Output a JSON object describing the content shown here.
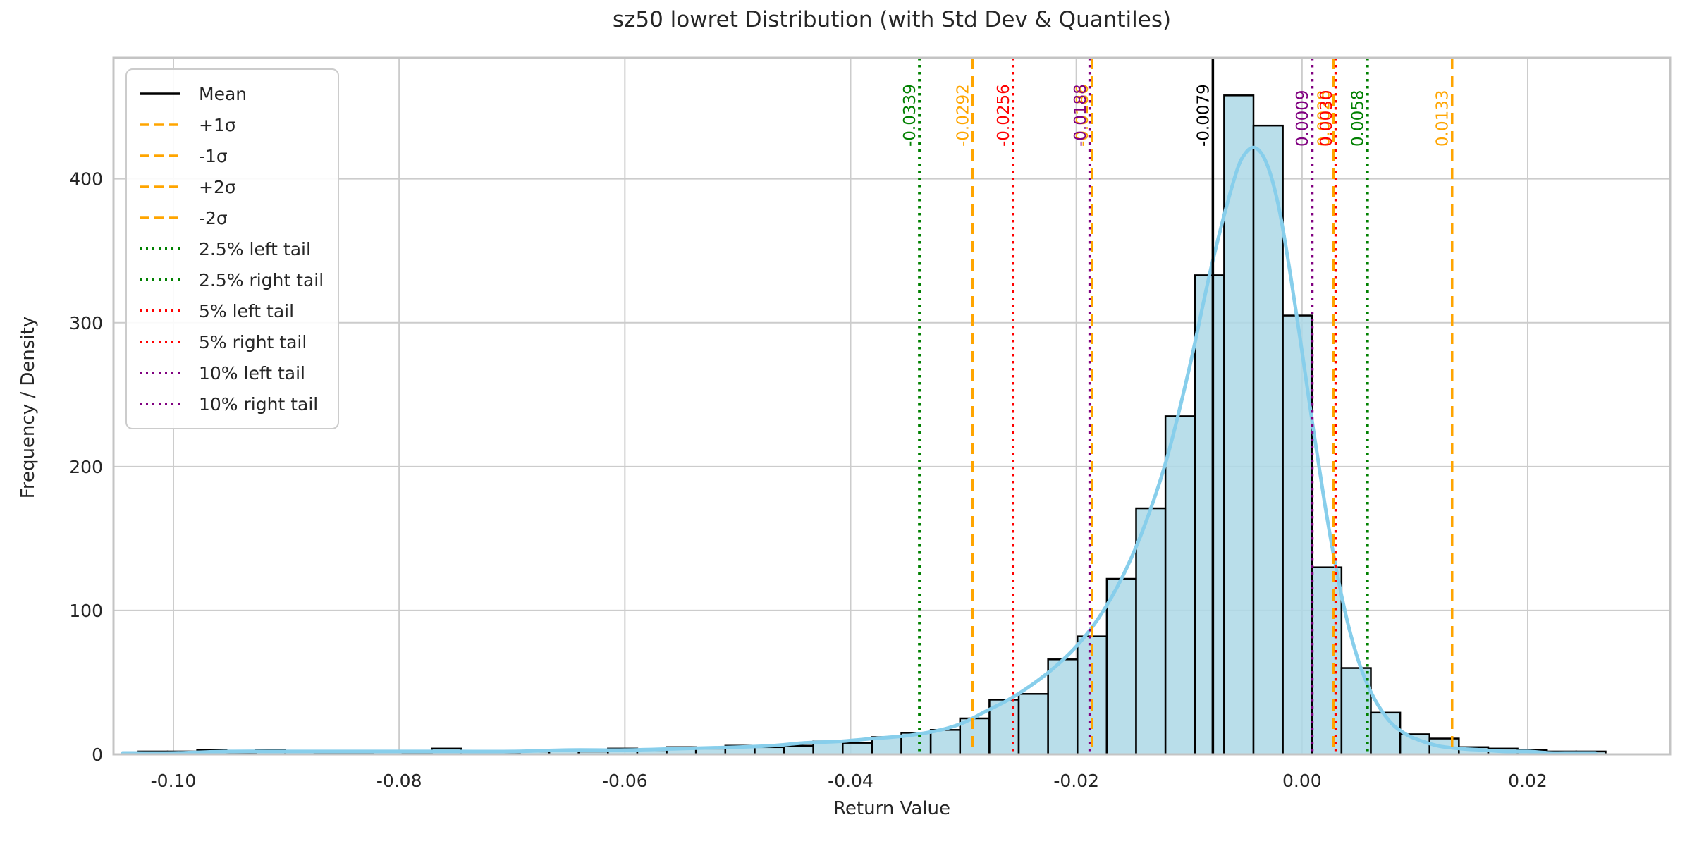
{
  "page": {
    "background": "#ffffff"
  },
  "chart_data": {
    "type": "bar",
    "subtype": "histogram-with-kde",
    "title": "sz50 lowret Distribution (with Std Dev & Quantiles)",
    "xlabel": "Return Value",
    "ylabel": "Frequency / Density",
    "xlim": [
      -0.1053,
      0.0326
    ],
    "ylim": [
      0,
      484
    ],
    "grid": true,
    "grid_color": "#cccccc",
    "spine_color": "#c4c4c4",
    "tick_color": "#262626",
    "x_ticks": [
      {
        "value": -0.1,
        "label": "-0.10"
      },
      {
        "value": -0.08,
        "label": "-0.08"
      },
      {
        "value": -0.06,
        "label": "-0.06"
      },
      {
        "value": -0.04,
        "label": "-0.04"
      },
      {
        "value": -0.02,
        "label": "-0.02"
      },
      {
        "value": 0.0,
        "label": "0.00"
      },
      {
        "value": 0.02,
        "label": "0.02"
      }
    ],
    "y_ticks": [
      {
        "value": 0,
        "label": "0"
      },
      {
        "value": 100,
        "label": "100"
      },
      {
        "value": 200,
        "label": "200"
      },
      {
        "value": 300,
        "label": "300"
      },
      {
        "value": 400,
        "label": "400"
      }
    ],
    "histogram": {
      "fill_color": "#ADD8E6",
      "fill_opacity": 0.85,
      "edge_color": "#000000",
      "bin_start": -0.1031,
      "bin_width": 0.0026,
      "counts": [
        2,
        2,
        3,
        1,
        3,
        2,
        1,
        1,
        2,
        1,
        4,
        2,
        1,
        2,
        3,
        2,
        4,
        3,
        5,
        4,
        6,
        5,
        6,
        9,
        8,
        12,
        15,
        17,
        25,
        38,
        42,
        66,
        82,
        122,
        171,
        235,
        333,
        458,
        437,
        305,
        130,
        60,
        29,
        14,
        11,
        5,
        4,
        3,
        2,
        2
      ]
    },
    "kde": {
      "color": "#87CEEB",
      "line_width": 5,
      "points": [
        [
          -0.1045,
          1
        ],
        [
          -0.1,
          1
        ],
        [
          -0.095,
          2
        ],
        [
          -0.09,
          2
        ],
        [
          -0.085,
          2
        ],
        [
          -0.08,
          2
        ],
        [
          -0.075,
          2
        ],
        [
          -0.07,
          2
        ],
        [
          -0.065,
          3
        ],
        [
          -0.06,
          3
        ],
        [
          -0.055,
          4
        ],
        [
          -0.05,
          5
        ],
        [
          -0.047,
          6
        ],
        [
          -0.044,
          8
        ],
        [
          -0.041,
          9
        ],
        [
          -0.038,
          11
        ],
        [
          -0.035,
          13
        ],
        [
          -0.032,
          17
        ],
        [
          -0.03,
          22
        ],
        [
          -0.028,
          30
        ],
        [
          -0.026,
          38
        ],
        [
          -0.024,
          48
        ],
        [
          -0.022,
          60
        ],
        [
          -0.02,
          75
        ],
        [
          -0.018,
          95
        ],
        [
          -0.016,
          122
        ],
        [
          -0.014,
          158
        ],
        [
          -0.012,
          205
        ],
        [
          -0.01,
          268
        ],
        [
          -0.008,
          340
        ],
        [
          -0.006,
          400
        ],
        [
          -0.005,
          418
        ],
        [
          -0.004,
          421
        ],
        [
          -0.003,
          408
        ],
        [
          -0.002,
          378
        ],
        [
          -0.001,
          332
        ],
        [
          0.0,
          280
        ],
        [
          0.001,
          226
        ],
        [
          0.002,
          175
        ],
        [
          0.003,
          130
        ],
        [
          0.004,
          93
        ],
        [
          0.005,
          65
        ],
        [
          0.006,
          45
        ],
        [
          0.007,
          31
        ],
        [
          0.008,
          21
        ],
        [
          0.009,
          15
        ],
        [
          0.01,
          11
        ],
        [
          0.012,
          6
        ],
        [
          0.014,
          4
        ],
        [
          0.016,
          3
        ],
        [
          0.018,
          2
        ],
        [
          0.02,
          2
        ],
        [
          0.022,
          1
        ],
        [
          0.024,
          1
        ],
        [
          0.026,
          1
        ]
      ]
    },
    "stat_lines": [
      {
        "name": "mean-line",
        "label": "-0.0079",
        "x": -0.0079,
        "color": "#000000",
        "style": "solid"
      },
      {
        "name": "plus-1-sigma-line",
        "label": "0.0028",
        "x": 0.0028,
        "color": "#FFA500",
        "style": "dashed"
      },
      {
        "name": "minus-1-sigma-line",
        "label": "-0.0186",
        "x": -0.0186,
        "color": "#FFA500",
        "style": "dashed"
      },
      {
        "name": "plus-2-sigma-line",
        "label": "0.0133",
        "x": 0.0133,
        "color": "#FFA500",
        "style": "dashed"
      },
      {
        "name": "minus-2-sigma-line",
        "label": "-0.0292",
        "x": -0.0292,
        "color": "#FFA500",
        "style": "dashed"
      },
      {
        "name": "left-tail-2p5-line",
        "label": "-0.0339",
        "x": -0.0339,
        "color": "#008000",
        "style": "dotted"
      },
      {
        "name": "right-tail-2p5-line",
        "label": "0.0058",
        "x": 0.0058,
        "color": "#008000",
        "style": "dotted"
      },
      {
        "name": "left-tail-5-line",
        "label": "-0.0256",
        "x": -0.0256,
        "color": "#FF0000",
        "style": "dotted"
      },
      {
        "name": "right-tail-5-line",
        "label": "0.0030",
        "x": 0.003,
        "color": "#FF0000",
        "style": "dotted"
      },
      {
        "name": "left-tail-10-line",
        "label": "-0.0188",
        "x": -0.0188,
        "color": "#800080",
        "style": "dotted"
      },
      {
        "name": "right-tail-10-line",
        "label": "0.0009",
        "x": 0.0009,
        "color": "#800080",
        "style": "dotted"
      }
    ],
    "legend": {
      "position": "upper-left",
      "items": [
        {
          "label": "Mean",
          "color": "#000000",
          "style": "solid"
        },
        {
          "label": "+1σ",
          "color": "#FFA500",
          "style": "dashed"
        },
        {
          "label": "-1σ",
          "color": "#FFA500",
          "style": "dashed"
        },
        {
          "label": "+2σ",
          "color": "#FFA500",
          "style": "dashed"
        },
        {
          "label": "-2σ",
          "color": "#FFA500",
          "style": "dashed"
        },
        {
          "label": "2.5% left tail",
          "color": "#008000",
          "style": "dotted"
        },
        {
          "label": "2.5% right tail",
          "color": "#008000",
          "style": "dotted"
        },
        {
          "label": "5% left tail",
          "color": "#FF0000",
          "style": "dotted"
        },
        {
          "label": "5% right tail",
          "color": "#FF0000",
          "style": "dotted"
        },
        {
          "label": "10% left tail",
          "color": "#800080",
          "style": "dotted"
        },
        {
          "label": "10% right tail",
          "color": "#800080",
          "style": "dotted"
        }
      ]
    }
  }
}
